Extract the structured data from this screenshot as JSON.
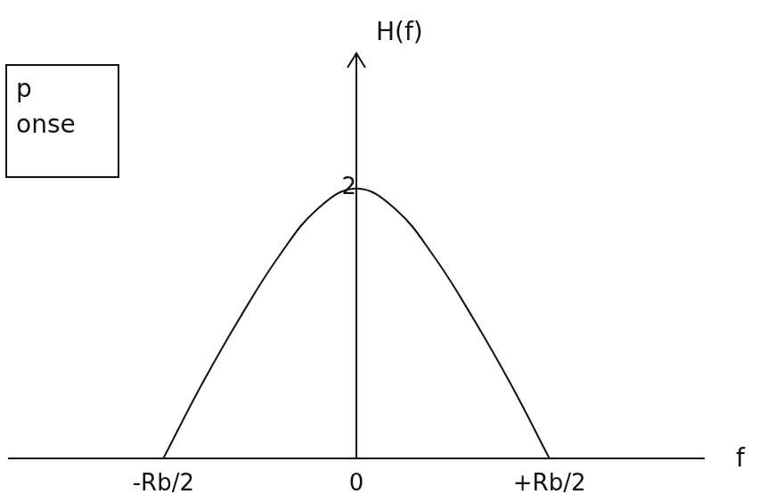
{
  "chart_data": {
    "type": "line",
    "x_label": "f",
    "y_label": "H(f)",
    "annotations": [
      "p",
      "onse"
    ],
    "x": [
      -0.5,
      -0.4,
      -0.3,
      -0.2,
      -0.1,
      0,
      0.1,
      0.2,
      0.3,
      0.4,
      0.5
    ],
    "values": [
      0,
      0.55,
      1.05,
      1.5,
      1.85,
      2,
      1.85,
      1.5,
      1.05,
      0.55,
      0
    ],
    "color": "#111111",
    "xlim": [
      -0.9,
      0.9
    ],
    "xticks": [
      {
        "value": -0.5,
        "label": "-Rb/2"
      },
      0,
      {
        "value": 0.5,
        "label": "+Rb/2"
      }
    ],
    "ylim": [
      0,
      3
    ],
    "yticks": [
      2
    ],
    "grid": false
  }
}
